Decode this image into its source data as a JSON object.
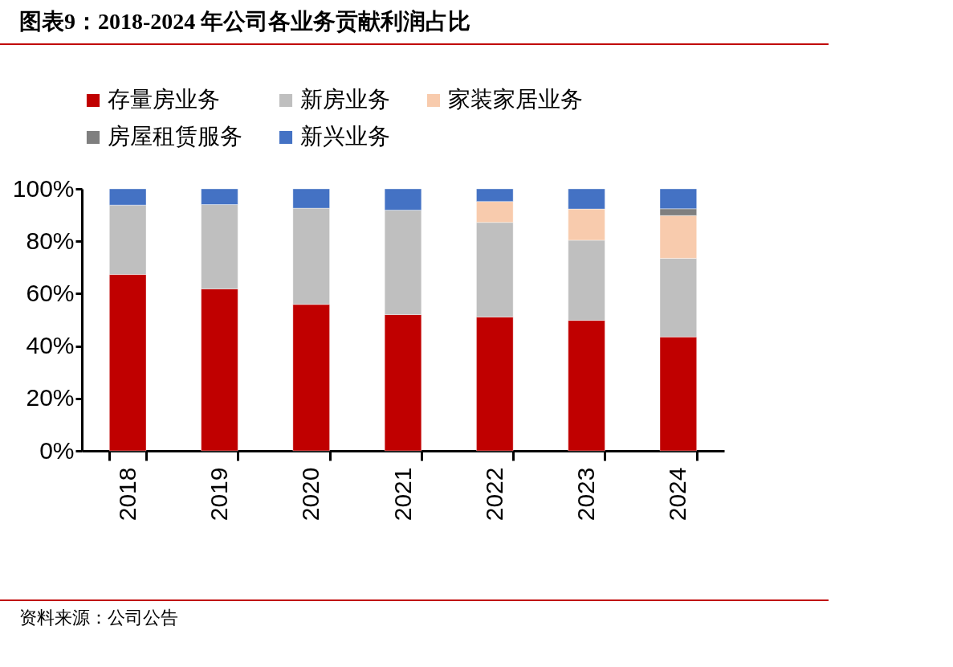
{
  "chart_data": {
    "type": "bar",
    "title": "图表9：2018-2024 年公司各业务贡献利润占比",
    "stacked": true,
    "grid": false,
    "legend": "top",
    "categories": [
      "2018",
      "2019",
      "2020",
      "2021",
      "2022",
      "2023",
      "2024"
    ],
    "series": [
      {
        "name": "存量房业务",
        "color": "#c00000",
        "values": [
          67.3,
          61.8,
          55.9,
          52.0,
          51.1,
          49.8,
          43.5
        ]
      },
      {
        "name": "新房业务",
        "color": "#bfbfbf",
        "values": [
          26.5,
          32.2,
          36.7,
          39.9,
          36.1,
          30.6,
          30.0
        ]
      },
      {
        "name": "家装家居业务",
        "color": "#f8cbad",
        "values": [
          null,
          null,
          null,
          null,
          8.0,
          11.9,
          16.3
        ]
      },
      {
        "name": "房屋租赁服务",
        "color": "#7f7f7f",
        "values": [
          null,
          null,
          null,
          null,
          null,
          null,
          2.6
        ]
      },
      {
        "name": "新兴业务",
        "color": "#4472c4",
        "values": [
          6.2,
          6.0,
          7.4,
          8.1,
          4.8,
          7.7,
          7.6
        ]
      }
    ],
    "ylim": [
      0,
      100
    ],
    "yticks": [
      {
        "value": 0,
        "label": "0%"
      },
      {
        "value": 20,
        "label": "20%"
      },
      {
        "value": 40,
        "label": "40%"
      },
      {
        "value": 60,
        "label": "60%"
      },
      {
        "value": 80,
        "label": "80%"
      },
      {
        "value": 100,
        "label": "100%"
      }
    ],
    "annotations": [
      "资料来源：公司公告"
    ]
  }
}
